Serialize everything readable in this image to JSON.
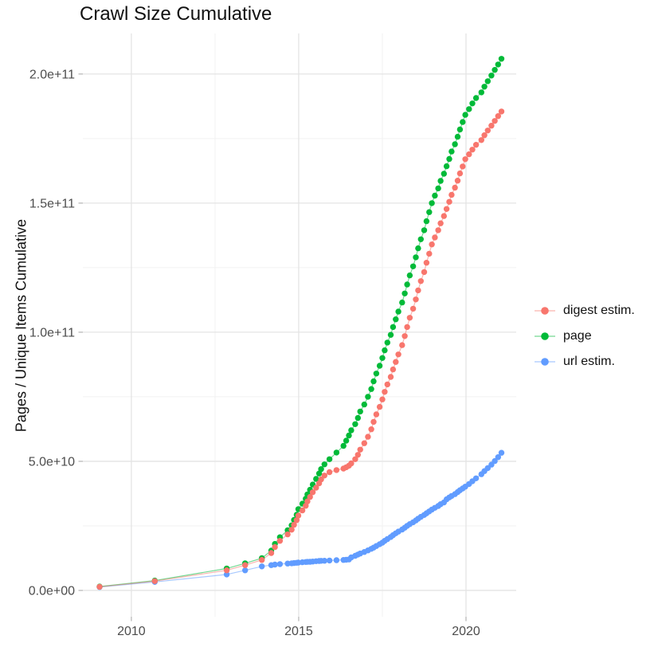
{
  "title": "Crawl Size Cumulative",
  "y_axis_title": "Pages / Unique Items Cumulative",
  "legend": {
    "items": [
      {
        "label": "digest estim.",
        "color": "#F8766D"
      },
      {
        "label": "page",
        "color": "#00BA38"
      },
      {
        "label": "url estim.",
        "color": "#619CFF"
      }
    ]
  },
  "chart_data": {
    "type": "scatter",
    "title": "Crawl Size Cumulative",
    "xlabel": "",
    "ylabel": "Pages / Unique Items Cumulative",
    "units": "values in billions (1e9) of pages / unique items",
    "grid": true,
    "legend_position": "right-center",
    "x_ticks": {
      "values": [
        2010,
        2015,
        2020
      ],
      "labels": [
        "2010",
        "2015",
        "2020"
      ]
    },
    "y_ticks": {
      "values_e9": [
        0,
        50,
        100,
        150,
        200
      ],
      "labels": [
        "0.0e+00",
        "5.0e+10",
        "1.0e+11",
        "1.5e+11",
        "2.0e+11"
      ]
    },
    "x_minor": [
      2012.5,
      2017.5
    ],
    "y_minor_e9": [
      25,
      75,
      125,
      175
    ],
    "xlim": [
      2008.55,
      2021.5
    ],
    "ylim_e9": [
      -10.2,
      215.7
    ],
    "x_years": [
      2009.05,
      2010.7,
      2012.85,
      2013.4,
      2013.9,
      2014.18,
      2014.29,
      2014.44,
      2014.67,
      2014.79,
      2014.86,
      2014.94,
      2014.99,
      2015.11,
      2015.21,
      2015.26,
      2015.34,
      2015.42,
      2015.52,
      2015.61,
      2015.67,
      2015.77,
      2015.92,
      2016.13,
      2016.34,
      2016.42,
      2016.5,
      2016.57,
      2016.69,
      2016.77,
      2016.84,
      2016.96,
      2017.07,
      2017.17,
      2017.24,
      2017.32,
      2017.42,
      2017.5,
      2017.57,
      2017.65,
      2017.75,
      2017.82,
      2017.9,
      2017.98,
      2018.09,
      2018.17,
      2018.24,
      2018.32,
      2018.42,
      2018.5,
      2018.57,
      2018.65,
      2018.75,
      2018.82,
      2018.9,
      2018.98,
      2019.07,
      2019.17,
      2019.24,
      2019.34,
      2019.42,
      2019.5,
      2019.57,
      2019.67,
      2019.75,
      2019.82,
      2019.9,
      2019.98,
      2020.09,
      2020.19,
      2020.3,
      2020.46,
      2020.55,
      2020.65,
      2020.76,
      2020.86,
      2020.96,
      2021.06
    ],
    "series": [
      {
        "name": "digest estim.",
        "color": "#F8766D",
        "values_e9": [
          1.4,
          3.6,
          7.8,
          9.8,
          11.8,
          14.5,
          16.8,
          19.2,
          21.7,
          23.5,
          25.4,
          27.2,
          29,
          31,
          32.8,
          34.5,
          36.2,
          38,
          39.8,
          41.5,
          43,
          44.5,
          45.8,
          46.6,
          47.2,
          47.7,
          48.3,
          49.2,
          50.8,
          52.5,
          54.5,
          57,
          59.5,
          62.4,
          65.3,
          68.2,
          71.1,
          74,
          76.9,
          79.8,
          82.7,
          85.6,
          88.5,
          91.4,
          95,
          98.5,
          102,
          105.6,
          109.1,
          112.7,
          116.2,
          119.8,
          123.3,
          126.9,
          130.4,
          134,
          136.7,
          139.5,
          142.2,
          145,
          147.7,
          150.5,
          153.2,
          156,
          158.7,
          161.5,
          164.2,
          167,
          168.9,
          170.7,
          172.6,
          174.4,
          176.3,
          178.1,
          180,
          181.8,
          183.7,
          185.5
        ]
      },
      {
        "name": "page",
        "color": "#00BA38",
        "values_e9": [
          1.5,
          3.8,
          8.5,
          10.5,
          12.5,
          15.4,
          18,
          20.6,
          23.3,
          25.2,
          27.3,
          29.3,
          31.5,
          33.6,
          35.5,
          37.2,
          39,
          41,
          43.2,
          45.3,
          47,
          48.8,
          50.8,
          53.4,
          56,
          58,
          60,
          62,
          64.4,
          66.8,
          69.3,
          72,
          75,
          78,
          81,
          84,
          87,
          90,
          93,
          96,
          99,
          102,
          105,
          108,
          111.5,
          115,
          118.5,
          122,
          125.5,
          129,
          132.5,
          136,
          139.5,
          143,
          146.5,
          150,
          152.9,
          155.7,
          158.6,
          161.4,
          164.3,
          167.1,
          170,
          172.8,
          175.7,
          178.5,
          181.4,
          184.2,
          186.4,
          188.6,
          190.7,
          192.9,
          195.1,
          197.2,
          199.4,
          201.6,
          203.7,
          205.9
        ]
      },
      {
        "name": "url estim.",
        "color": "#619CFF",
        "values_e9": [
          1.3,
          3.3,
          6.2,
          7.8,
          9.3,
          9.8,
          10,
          10.2,
          10.4,
          10.5,
          10.6,
          10.7,
          10.8,
          10.9,
          11,
          11.05,
          11.1,
          11.2,
          11.3,
          11.4,
          11.45,
          11.5,
          11.6,
          11.7,
          11.8,
          11.9,
          12,
          12.8,
          13.4,
          13.9,
          14.3,
          14.9,
          15.5,
          16.1,
          16.6,
          17.2,
          17.9,
          18.5,
          19.2,
          19.9,
          20.7,
          21.4,
          22.1,
          22.8,
          23.6,
          24.3,
          25,
          25.7,
          26.4,
          27.1,
          27.8,
          28.5,
          29.2,
          29.9,
          30.6,
          31.3,
          32,
          32.7,
          33.4,
          34.1,
          35.3,
          36,
          36.6,
          37.3,
          38.1,
          38.8,
          39.5,
          40.2,
          41.2,
          42.3,
          43.4,
          45,
          46.2,
          47.4,
          48.7,
          50.1,
          51.6,
          53.3
        ]
      }
    ]
  }
}
